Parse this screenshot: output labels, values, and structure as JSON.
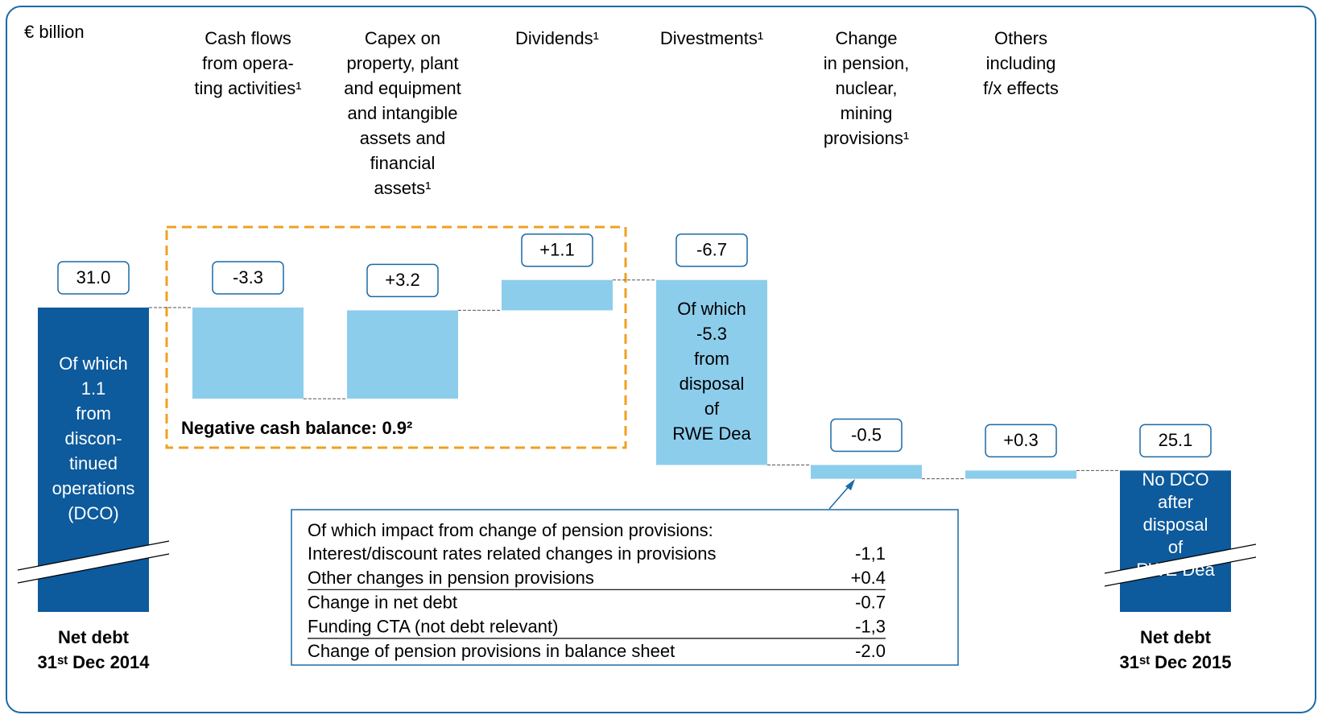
{
  "chart_data": {
    "type": "waterfall",
    "unit_label": "€ billion",
    "categories": [
      "Net debt\n31ˢᵗ Dec 2014",
      "Cash flows\nfrom opera-\nting activities¹",
      "Capex on\nproperty, plant\nand equipment\nand intangible\nassets and\nfinancial\nassets¹",
      "Dividends¹",
      "Divestments¹",
      "Change\nin pension,\nnuclear,\nmining\nprovisions¹",
      "Others\nincluding\nf/x effects",
      "Net debt\n31ˢᵗ Dec 2015"
    ],
    "values": [
      31.0,
      -3.3,
      3.2,
      1.1,
      -6.7,
      -0.5,
      0.3,
      25.1
    ],
    "value_labels": [
      "31.0",
      "-3.3",
      "+3.2",
      "+1.1",
      "-6.7",
      "-0.5",
      "+0.3",
      "25.1"
    ],
    "bar_types": [
      "total",
      "delta",
      "delta",
      "delta",
      "delta",
      "delta",
      "delta",
      "total"
    ],
    "total_color": "#0d5a9c",
    "delta_color": "#8dcdec",
    "bar_annotations": [
      "Of which\n1.1\nfrom\ndiscon-\ntinued\noperations\n(DCO)",
      null,
      null,
      null,
      "Of which\n-5.3\nfrom\ndisposal\nof\nRWE Dea",
      null,
      null,
      "No DCO\nafter\ndisposal\nof\nRWE Dea"
    ],
    "highlight_label": "Negative cash balance: 0.9²",
    "highlight_color": "#f0a020"
  },
  "note_table": {
    "title": "Of which impact from change of pension provisions:",
    "rows": [
      {
        "label": "Interest/discount rates related changes in provisions",
        "value": "-1,1",
        "underlined": false
      },
      {
        "label": "Other changes in pension provisions",
        "value": "+0.4",
        "underlined": true
      },
      {
        "label": "Change in net debt",
        "value": "-0.7",
        "underlined": false
      },
      {
        "label": "Funding CTA (not debt relevant)",
        "value": "-1,3",
        "underlined": true
      },
      {
        "label": "Change of pension provisions in balance sheet",
        "value": "-2.0",
        "underlined": false
      }
    ]
  }
}
